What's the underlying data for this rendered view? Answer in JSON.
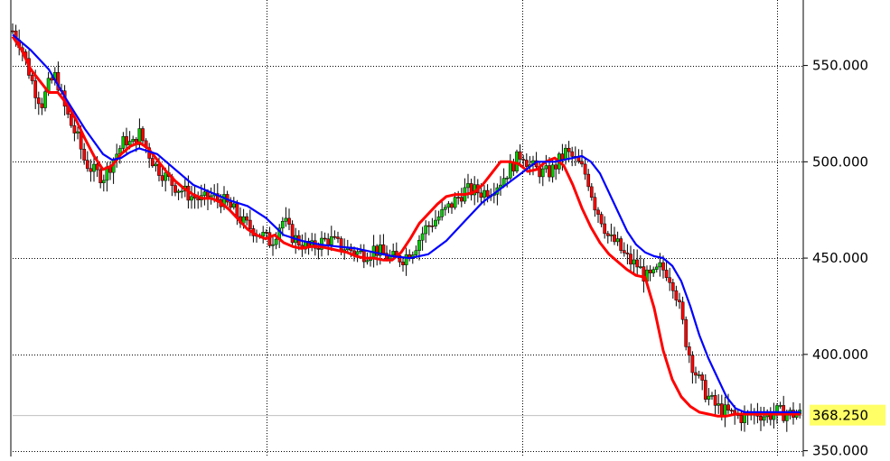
{
  "chart_data": {
    "type": "candlestick",
    "title": "",
    "xlabel": "",
    "ylabel": "",
    "ylim": [
      347,
      584
    ],
    "y_ticks": [
      {
        "value": 550,
        "label": "550.000"
      },
      {
        "value": 500,
        "label": "500.000"
      },
      {
        "value": 450,
        "label": "450.000"
      },
      {
        "value": 400,
        "label": "400.000"
      },
      {
        "value": 350,
        "label": "350.000"
      }
    ],
    "last_price": {
      "value": 368.25,
      "label": "368.250"
    },
    "grid": true,
    "colors": {
      "up_candle": "#00cc00",
      "down_candle": "#ff0000",
      "wick": "#000000",
      "fast_ma": "#ff0000",
      "slow_ma": "#0000ff",
      "grid": "#000000",
      "last_price_bg": "#ffff66",
      "last_price_line": "#c0c0c0"
    },
    "series": [
      {
        "kind": "price",
        "x": [
          0,
          8,
          16,
          24,
          32,
          40,
          48,
          56,
          64,
          72,
          80,
          90,
          100,
          110,
          116,
          125,
          132,
          140,
          150,
          158,
          168,
          178,
          188,
          198,
          210,
          220,
          232,
          244,
          256,
          266,
          276,
          286,
          294,
          300,
          308,
          318,
          330,
          340,
          350,
          360,
          370,
          380,
          390,
          400,
          410,
          420,
          432,
          444,
          456,
          468,
          480,
          490,
          500,
          510,
          520,
          530,
          540,
          548,
          556,
          564,
          572,
          580,
          588,
          596,
          604,
          612,
          620,
          628,
          636,
          644,
          652,
          660,
          668,
          676,
          684,
          692,
          700,
          708,
          716,
          724,
          732,
          740,
          746,
          752,
          758,
          764,
          770,
          776,
          782,
          790,
          800,
          810,
          822,
          834,
          846,
          858,
          872
        ],
        "y": [
          568,
          562,
          550,
          538,
          530,
          540,
          545,
          530,
          520,
          512,
          500,
          495,
          492,
          500,
          505,
          512,
          508,
          515,
          505,
          498,
          493,
          488,
          485,
          482,
          480,
          482,
          480,
          475,
          468,
          465,
          462,
          458,
          466,
          470,
          462,
          458,
          455,
          458,
          460,
          457,
          455,
          453,
          452,
          455,
          452,
          450,
          450,
          455,
          465,
          470,
          475,
          480,
          485,
          485,
          484,
          486,
          490,
          495,
          500,
          505,
          498,
          496,
          494,
          495,
          500,
          505,
          502,
          498,
          492,
          478,
          470,
          460,
          458,
          452,
          448,
          446,
          440,
          440,
          445,
          443,
          436,
          420,
          405,
          395,
          388,
          382,
          378,
          374,
          372,
          370,
          368,
          367,
          370,
          368,
          370,
          369,
          369
        ]
      },
      {
        "kind": "fast_ma",
        "x": [
          0,
          10,
          20,
          30,
          40,
          50,
          60,
          70,
          80,
          90,
          100,
          110,
          120,
          130,
          140,
          150,
          160,
          170,
          180,
          190,
          200,
          210,
          220,
          230,
          240,
          250,
          260,
          270,
          280,
          290,
          300,
          310,
          320,
          330,
          340,
          350,
          360,
          370,
          380,
          390,
          400,
          410,
          420,
          430,
          440,
          450,
          460,
          470,
          480,
          490,
          500,
          510,
          520,
          530,
          540,
          550,
          560,
          570,
          580,
          590,
          600,
          610,
          620,
          630,
          640,
          650,
          660,
          670,
          680,
          690,
          700,
          710,
          720,
          730,
          740,
          750,
          760,
          770,
          780,
          790,
          800,
          810,
          820,
          830,
          840,
          850,
          860,
          872
        ],
        "y": [
          565,
          558,
          548,
          542,
          536,
          536,
          530,
          522,
          512,
          503,
          496,
          498,
          504,
          508,
          510,
          507,
          501,
          495,
          490,
          486,
          483,
          481,
          481,
          479,
          475,
          470,
          465,
          462,
          460,
          462,
          458,
          456,
          455,
          456,
          456,
          455,
          454,
          453,
          451,
          450,
          450,
          449,
          449,
          453,
          460,
          468,
          473,
          478,
          482,
          483,
          483,
          484,
          488,
          494,
          500,
          500,
          499,
          495,
          496,
          500,
          502,
          498,
          488,
          476,
          466,
          458,
          452,
          448,
          444,
          441,
          440,
          424,
          402,
          387,
          378,
          373,
          370,
          369,
          368,
          368,
          369,
          369,
          369,
          369,
          369,
          369,
          369,
          369
        ]
      },
      {
        "kind": "slow_ma",
        "x": [
          0,
          20,
          40,
          60,
          80,
          100,
          110,
          120,
          130,
          140,
          160,
          180,
          200,
          220,
          240,
          260,
          280,
          300,
          320,
          340,
          360,
          380,
          400,
          420,
          440,
          460,
          480,
          500,
          520,
          540,
          560,
          580,
          600,
          620,
          630,
          640,
          650,
          660,
          670,
          680,
          690,
          700,
          710,
          720,
          730,
          740,
          750,
          760,
          770,
          780,
          790,
          800,
          810,
          820,
          840,
          860,
          872
        ],
        "y": [
          566,
          558,
          548,
          532,
          517,
          504,
          501,
          502,
          505,
          507,
          504,
          496,
          488,
          484,
          480,
          477,
          471,
          462,
          459,
          457,
          456,
          455,
          453,
          451,
          450,
          452,
          459,
          469,
          479,
          486,
          493,
          500,
          500,
          502,
          503,
          500,
          494,
          484,
          474,
          464,
          457,
          453,
          451,
          450,
          446,
          438,
          425,
          410,
          398,
          388,
          378,
          372,
          370,
          370,
          370,
          370,
          370
        ]
      }
    ]
  }
}
